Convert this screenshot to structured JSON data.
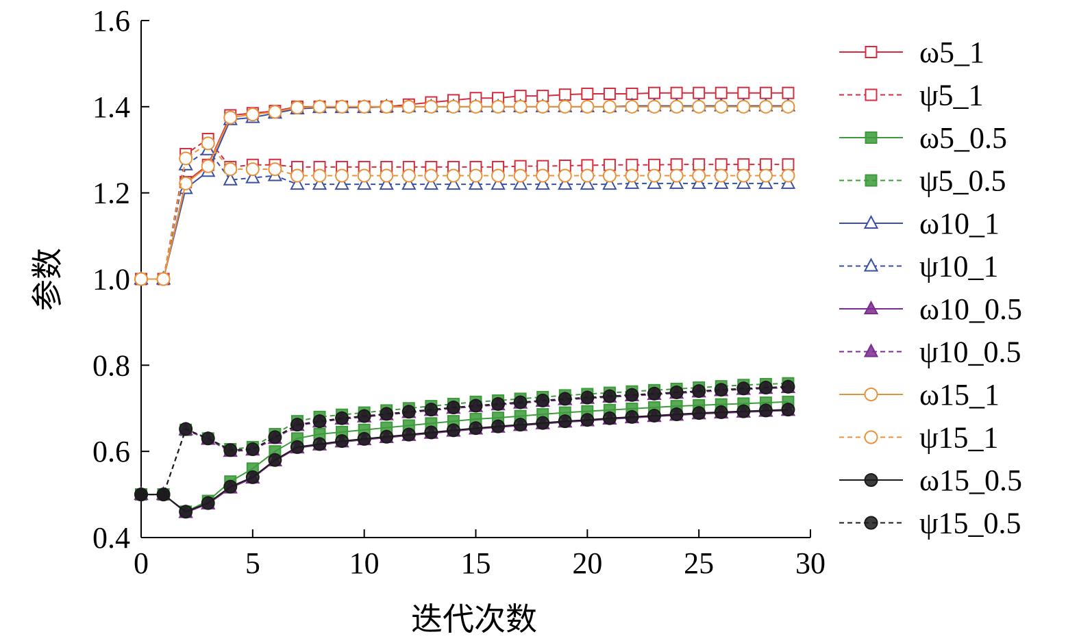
{
  "chart_data": {
    "type": "line",
    "title": "",
    "xlabel": "迭代次数",
    "ylabel": "参数",
    "xlim": [
      0,
      30
    ],
    "ylim": [
      0.4,
      1.6
    ],
    "xticks": [
      "0",
      "5",
      "10",
      "15",
      "20",
      "25",
      "30"
    ],
    "yticks": [
      "0.4",
      "0.6",
      "0.8",
      "1.0",
      "1.2",
      "1.4",
      "1.6"
    ],
    "grid": false,
    "legend_position": "right",
    "x": [
      0,
      1,
      2,
      3,
      4,
      5,
      6,
      7,
      8,
      9,
      10,
      11,
      12,
      13,
      14,
      15,
      16,
      17,
      18,
      19,
      20,
      21,
      22,
      23,
      24,
      25,
      26,
      27,
      28,
      29
    ],
    "series": [
      {
        "name": "ω5_1",
        "color": "#d62b3f",
        "dash": "solid",
        "marker": "square",
        "filled": false,
        "values": [
          1.0,
          1.0,
          1.225,
          1.265,
          1.38,
          1.385,
          1.39,
          1.4,
          1.4,
          1.4,
          1.4,
          1.4,
          1.405,
          1.41,
          1.415,
          1.42,
          1.42,
          1.425,
          1.425,
          1.428,
          1.43,
          1.43,
          1.43,
          1.432,
          1.432,
          1.432,
          1.432,
          1.432,
          1.432,
          1.432
        ]
      },
      {
        "name": "ψ5_1",
        "color": "#d62b3f",
        "dash": "dashed",
        "marker": "square",
        "filled": false,
        "values": [
          1.0,
          1.0,
          1.29,
          1.325,
          1.26,
          1.265,
          1.265,
          1.26,
          1.26,
          1.26,
          1.26,
          1.26,
          1.26,
          1.26,
          1.26,
          1.26,
          1.26,
          1.262,
          1.262,
          1.263,
          1.264,
          1.265,
          1.265,
          1.265,
          1.266,
          1.266,
          1.266,
          1.266,
          1.266,
          1.266
        ]
      },
      {
        "name": "ω5_0.5",
        "color": "#3c9b3a",
        "dash": "solid",
        "marker": "square",
        "filled": true,
        "values": [
          0.5,
          0.5,
          0.46,
          0.485,
          0.53,
          0.56,
          0.6,
          0.63,
          0.64,
          0.645,
          0.65,
          0.655,
          0.66,
          0.665,
          0.67,
          0.675,
          0.678,
          0.682,
          0.686,
          0.69,
          0.693,
          0.696,
          0.699,
          0.702,
          0.705,
          0.707,
          0.709,
          0.711,
          0.713,
          0.715
        ]
      },
      {
        "name": "ψ5_0.5",
        "color": "#3c9b3a",
        "dash": "dashed",
        "marker": "square",
        "filled": true,
        "values": [
          0.5,
          0.5,
          0.65,
          0.63,
          0.605,
          0.61,
          0.64,
          0.67,
          0.68,
          0.685,
          0.69,
          0.695,
          0.7,
          0.705,
          0.71,
          0.715,
          0.718,
          0.722,
          0.726,
          0.73,
          0.733,
          0.736,
          0.739,
          0.742,
          0.745,
          0.748,
          0.751,
          0.754,
          0.756,
          0.758
        ]
      },
      {
        "name": "ω10_1",
        "color": "#3a4fa3",
        "dash": "solid",
        "marker": "triangle",
        "filled": false,
        "values": [
          1.0,
          1.0,
          1.21,
          1.25,
          1.37,
          1.375,
          1.385,
          1.395,
          1.398,
          1.398,
          1.398,
          1.4,
          1.4,
          1.4,
          1.4,
          1.4,
          1.4,
          1.4,
          1.4,
          1.4,
          1.4,
          1.4,
          1.402,
          1.402,
          1.402,
          1.402,
          1.402,
          1.402,
          1.402,
          1.402
        ]
      },
      {
        "name": "ψ10_1",
        "color": "#3a4fa3",
        "dash": "dashed",
        "marker": "triangle",
        "filled": false,
        "values": [
          1.0,
          1.0,
          1.265,
          1.3,
          1.23,
          1.235,
          1.24,
          1.22,
          1.22,
          1.22,
          1.22,
          1.22,
          1.22,
          1.22,
          1.22,
          1.22,
          1.22,
          1.22,
          1.22,
          1.22,
          1.22,
          1.22,
          1.222,
          1.222,
          1.222,
          1.222,
          1.222,
          1.222,
          1.222,
          1.222
        ]
      },
      {
        "name": "ω10_0.5",
        "color": "#7b2d8e",
        "dash": "solid",
        "marker": "triangle",
        "filled": true,
        "values": [
          0.5,
          0.5,
          0.458,
          0.478,
          0.515,
          0.538,
          0.578,
          0.608,
          0.615,
          0.622,
          0.627,
          0.632,
          0.637,
          0.642,
          0.647,
          0.652,
          0.656,
          0.66,
          0.664,
          0.668,
          0.671,
          0.675,
          0.678,
          0.681,
          0.684,
          0.687,
          0.689,
          0.691,
          0.693,
          0.695
        ]
      },
      {
        "name": "ψ10_0.5",
        "color": "#7b2d8e",
        "dash": "dashed",
        "marker": "triangle",
        "filled": true,
        "values": [
          0.5,
          0.5,
          0.65,
          0.628,
          0.6,
          0.603,
          0.63,
          0.66,
          0.668,
          0.675,
          0.68,
          0.685,
          0.69,
          0.695,
          0.7,
          0.704,
          0.708,
          0.712,
          0.716,
          0.72,
          0.723,
          0.726,
          0.729,
          0.732,
          0.735,
          0.738,
          0.741,
          0.744,
          0.746,
          0.748
        ]
      },
      {
        "name": "ω15_1",
        "color": "#e8923a",
        "dash": "solid",
        "marker": "circle",
        "filled": false,
        "values": [
          1.0,
          1.0,
          1.222,
          1.262,
          1.375,
          1.382,
          1.388,
          1.398,
          1.4,
          1.4,
          1.4,
          1.4,
          1.4,
          1.4,
          1.4,
          1.4,
          1.4,
          1.4,
          1.4,
          1.4,
          1.4,
          1.4,
          1.4,
          1.4,
          1.4,
          1.4,
          1.4,
          1.4,
          1.4,
          1.4
        ]
      },
      {
        "name": "ψ15_1",
        "color": "#e8923a",
        "dash": "dashed",
        "marker": "circle",
        "filled": false,
        "values": [
          1.0,
          1.0,
          1.28,
          1.315,
          1.255,
          1.255,
          1.255,
          1.24,
          1.24,
          1.24,
          1.24,
          1.24,
          1.24,
          1.24,
          1.24,
          1.24,
          1.24,
          1.24,
          1.24,
          1.24,
          1.24,
          1.24,
          1.24,
          1.24,
          1.24,
          1.24,
          1.24,
          1.24,
          1.24,
          1.24
        ]
      },
      {
        "name": "ω15_0.5",
        "color": "#1b1b1b",
        "dash": "solid",
        "marker": "circle",
        "filled": true,
        "values": [
          0.5,
          0.5,
          0.46,
          0.48,
          0.518,
          0.54,
          0.58,
          0.61,
          0.617,
          0.624,
          0.629,
          0.634,
          0.639,
          0.644,
          0.649,
          0.654,
          0.658,
          0.662,
          0.666,
          0.67,
          0.673,
          0.677,
          0.68,
          0.683,
          0.686,
          0.689,
          0.691,
          0.693,
          0.695,
          0.697
        ]
      },
      {
        "name": "ψ15_0.5",
        "color": "#1b1b1b",
        "dash": "dashed",
        "marker": "circle",
        "filled": true,
        "values": [
          0.5,
          0.5,
          0.652,
          0.63,
          0.603,
          0.605,
          0.633,
          0.662,
          0.67,
          0.677,
          0.682,
          0.687,
          0.692,
          0.697,
          0.702,
          0.706,
          0.71,
          0.714,
          0.718,
          0.722,
          0.725,
          0.728,
          0.731,
          0.734,
          0.737,
          0.74,
          0.743,
          0.746,
          0.748,
          0.75
        ]
      }
    ]
  }
}
